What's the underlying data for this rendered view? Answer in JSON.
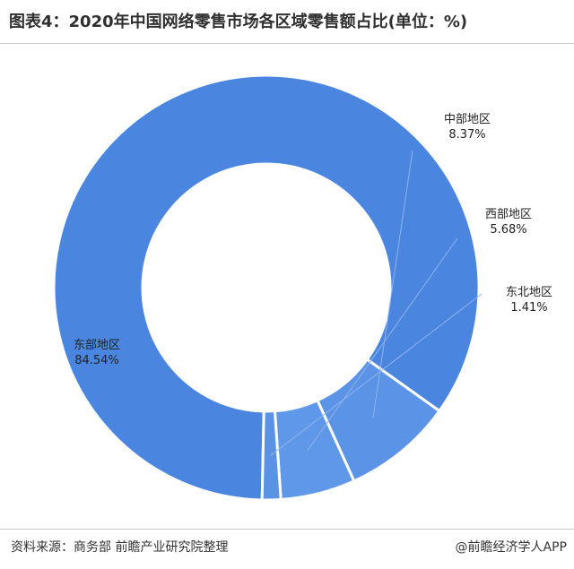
{
  "header": {
    "title": "图表4：2020年中国网络零售市场各区域零售额占比(单位：%)"
  },
  "footer": {
    "source": "资料来源：商务部 前瞻产业研究院整理",
    "brand": "@前瞻经济学人APP"
  },
  "chart_data": {
    "type": "pie",
    "donut": true,
    "unit": "%",
    "categories": [
      "东部地区",
      "中部地区",
      "西部地区",
      "东北地区"
    ],
    "values": [
      84.54,
      8.37,
      5.68,
      1.41
    ],
    "value_labels": [
      "84.54%",
      "8.37%",
      "5.68%",
      "1.41%"
    ],
    "colors": [
      "#4a86e0",
      "#5b94e6",
      "#5f98e8",
      "#5a92e5"
    ],
    "title": "图表4：2020年中国网络零售市场各区域零售额占比(单位：%)"
  }
}
